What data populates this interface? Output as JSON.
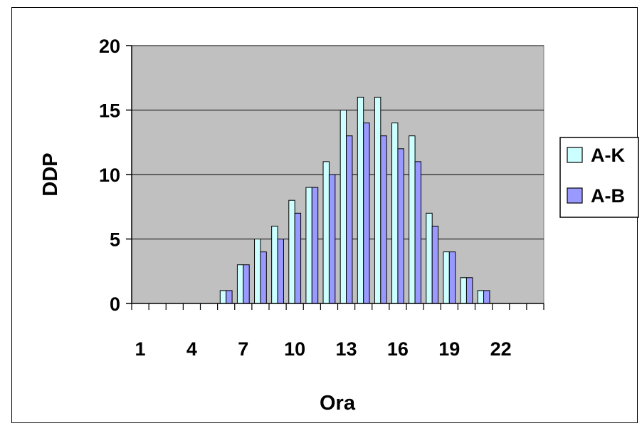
{
  "chart_data": {
    "type": "bar",
    "categories": [
      1,
      2,
      3,
      4,
      5,
      6,
      7,
      8,
      9,
      10,
      11,
      12,
      13,
      14,
      15,
      16,
      17,
      18,
      19,
      20,
      21,
      22,
      23,
      24
    ],
    "x_tick_labels": [
      "1",
      "4",
      "7",
      "10",
      "13",
      "16",
      "19",
      "22"
    ],
    "x_tick_categories": [
      1,
      4,
      7,
      10,
      13,
      16,
      19,
      22
    ],
    "series": [
      {
        "name": "A-K",
        "color": "#ccffff",
        "values": [
          0,
          0,
          0,
          0,
          0,
          1,
          3,
          5,
          6,
          8,
          9,
          11,
          15,
          16,
          16,
          14,
          13,
          7,
          4,
          2,
          1,
          0,
          0,
          0
        ]
      },
      {
        "name": "A-B",
        "color": "#9999ff",
        "values": [
          0,
          0,
          0,
          0,
          0,
          1,
          3,
          4,
          5,
          7,
          9,
          10,
          13,
          14,
          13,
          12,
          11,
          6,
          4,
          2,
          1,
          0,
          0,
          0
        ]
      }
    ],
    "title": "",
    "xlabel": "Ora",
    "ylabel": "DDP",
    "ylim": [
      0,
      20
    ],
    "yticks": [
      "0",
      "5",
      "10",
      "15",
      "20"
    ],
    "ytick_values": [
      0,
      5,
      10,
      15,
      20
    ],
    "grid": true,
    "plot_background": "#c0c0c0",
    "legend_position": "right"
  }
}
